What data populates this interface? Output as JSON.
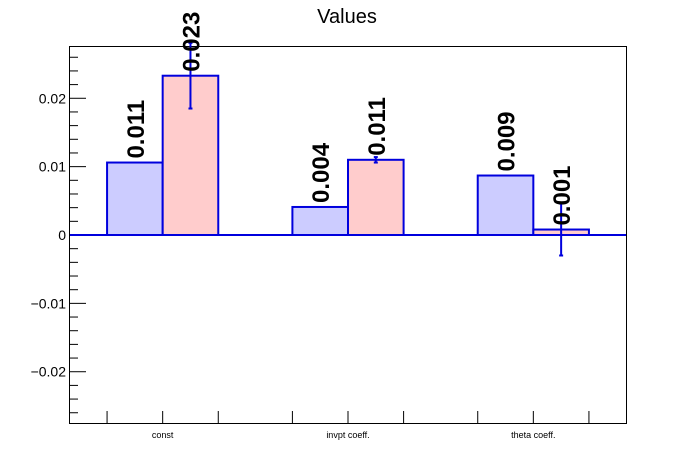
{
  "chart_data": {
    "type": "bar",
    "title": "Values",
    "xlabel": "",
    "ylabel": "",
    "categories": [
      "const",
      "invpt coeff.",
      "theta coeff."
    ],
    "ylim": [
      -0.0275,
      0.0275
    ],
    "yticks": [
      -0.02,
      -0.01,
      0,
      0.01,
      0.02
    ],
    "ytick_labels": [
      "−0.02",
      "−0.01",
      "0",
      "0.01",
      "0.02"
    ],
    "grid": false,
    "legend": "none",
    "series": [
      {
        "values": [
          0.0106,
          0.0041,
          0.0087
        ],
        "errors": [
          0,
          0,
          0
        ],
        "labels": [
          "0.011",
          "0.004",
          "0.009"
        ],
        "fill": "#ccccff",
        "stroke": "#0000dd"
      },
      {
        "values": [
          0.0233,
          0.011,
          0.0008
        ],
        "errors": [
          0.0048,
          0.0004,
          0.0038
        ],
        "labels": [
          "0.023",
          "0.011",
          "0.001"
        ],
        "fill": "#ffcccc",
        "stroke": "#0000dd"
      }
    ]
  }
}
